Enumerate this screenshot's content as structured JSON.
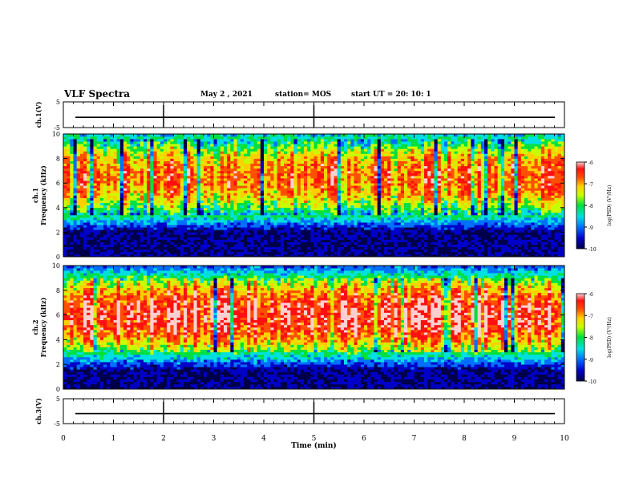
{
  "header": {
    "title": "VLF Spectra",
    "date": "May 2 , 2021",
    "station": "station= MOS",
    "start_ut": "start UT =  20: 10: 1"
  },
  "chart_data": [
    {
      "type": "line",
      "panel": "ch1-voltage",
      "ylabel": "ch.1(V)",
      "ylim": [
        -5,
        5
      ],
      "yticks": [
        "5",
        "-5"
      ],
      "xlim": [
        0,
        10
      ],
      "series": [
        {
          "values": [
            -1,
            -1
          ]
        }
      ],
      "grid": false
    },
    {
      "type": "heatmap",
      "panel": "ch1-spectrogram",
      "ylabel": "ch.1 Frequency (kHz)",
      "yticks": [
        "0",
        "2",
        "4",
        "6",
        "8",
        "10"
      ],
      "ylim": [
        0,
        10
      ],
      "xlim": [
        0,
        10
      ],
      "colorbar": {
        "label": "log(PSD) (V²/Hz)",
        "ticks": [
          "-6",
          "-7",
          "-8",
          "-9",
          "-10"
        ],
        "range": [
          -10,
          -6
        ]
      },
      "signal_band_khz": [
        3.5,
        9.5
      ],
      "peak_level": -7
    },
    {
      "type": "heatmap",
      "panel": "ch2-spectrogram",
      "ylabel": "ch.2 Frequency (kHz)",
      "yticks": [
        "0",
        "2",
        "4",
        "6",
        "8",
        "10"
      ],
      "ylim": [
        0,
        10
      ],
      "xlim": [
        0,
        10
      ],
      "colorbar": {
        "label": "log(PSD) (V²/Hz)",
        "ticks": [
          "-6",
          "-7",
          "-8",
          "-9",
          "-10"
        ],
        "range": [
          -10,
          -6
        ]
      },
      "signal_band_khz": [
        3,
        9
      ],
      "peak_level": -6.5
    },
    {
      "type": "line",
      "panel": "ch3-voltage",
      "ylabel": "ch.3(V)",
      "ylim": [
        -5,
        5
      ],
      "yticks": [
        "5",
        "-5"
      ],
      "xlabel": "Time (min)",
      "xticks": [
        "0",
        "1",
        "2",
        "3",
        "4",
        "5",
        "6",
        "7",
        "8",
        "9",
        "10"
      ],
      "xlim": [
        0,
        10
      ],
      "series": [
        {
          "values": [
            -1,
            -1
          ]
        }
      ],
      "grid": false
    }
  ],
  "colors": {
    "scale": [
      "#00004a",
      "#0000c8",
      "#0070ff",
      "#00e0e0",
      "#00e040",
      "#c8ff00",
      "#ffd000",
      "#ff5000",
      "#ff1010",
      "#ffd0d0"
    ]
  }
}
